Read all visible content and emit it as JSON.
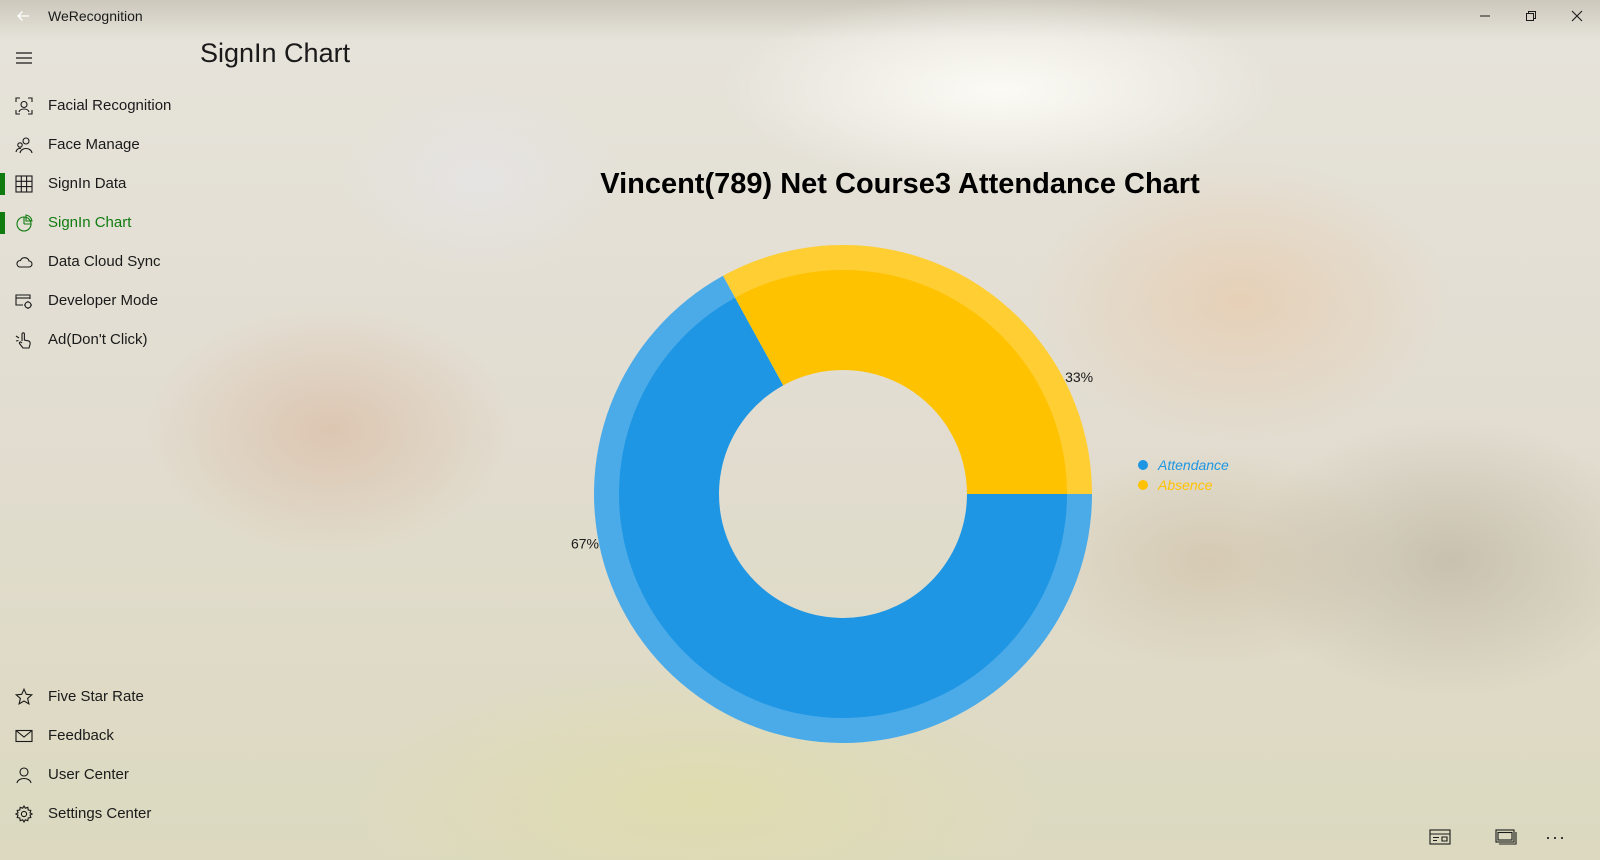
{
  "app": {
    "title": "WeRecognition"
  },
  "window_controls": {
    "back_icon": "back-arrow-icon",
    "minimize_icon": "minimize-icon",
    "restore_icon": "restore-icon",
    "close_icon": "close-icon"
  },
  "sidebar": {
    "menu_icon": "hamburger-icon",
    "top_items": [
      {
        "label": "Facial Recognition",
        "icon": "face-scan-icon"
      },
      {
        "label": "Face Manage",
        "icon": "people-icon"
      },
      {
        "label": "SignIn Data",
        "icon": "grid-icon"
      },
      {
        "label": "SignIn Chart",
        "icon": "pie-chart-icon"
      },
      {
        "label": "Data Cloud Sync",
        "icon": "cloud-icon"
      },
      {
        "label": "Developer Mode",
        "icon": "developer-icon"
      },
      {
        "label": "Ad(Don't Click)",
        "icon": "touch-hand-icon"
      }
    ],
    "bottom_items": [
      {
        "label": "Five Star Rate",
        "icon": "star-icon"
      },
      {
        "label": "Feedback",
        "icon": "mail-icon"
      },
      {
        "label": "User Center",
        "icon": "person-icon"
      },
      {
        "label": "Settings Center",
        "icon": "gear-icon"
      }
    ],
    "selected_item": "SignIn Chart"
  },
  "page": {
    "title": "SignIn Chart"
  },
  "chart_data": {
    "type": "pie",
    "title": "Vincent(789) Net Course3 Attendance Chart",
    "donut": true,
    "series": [
      {
        "name": "Attendance",
        "value": 67,
        "label": "67%",
        "color": "#1e96e3"
      },
      {
        "name": "Absence",
        "value": 33,
        "label": "33%",
        "color": "#ffc200"
      }
    ],
    "legend_position": "right"
  },
  "bottom_bar": {
    "icons": [
      "caption-icon",
      "window-icon",
      "more-icon"
    ],
    "more_label": "..."
  }
}
